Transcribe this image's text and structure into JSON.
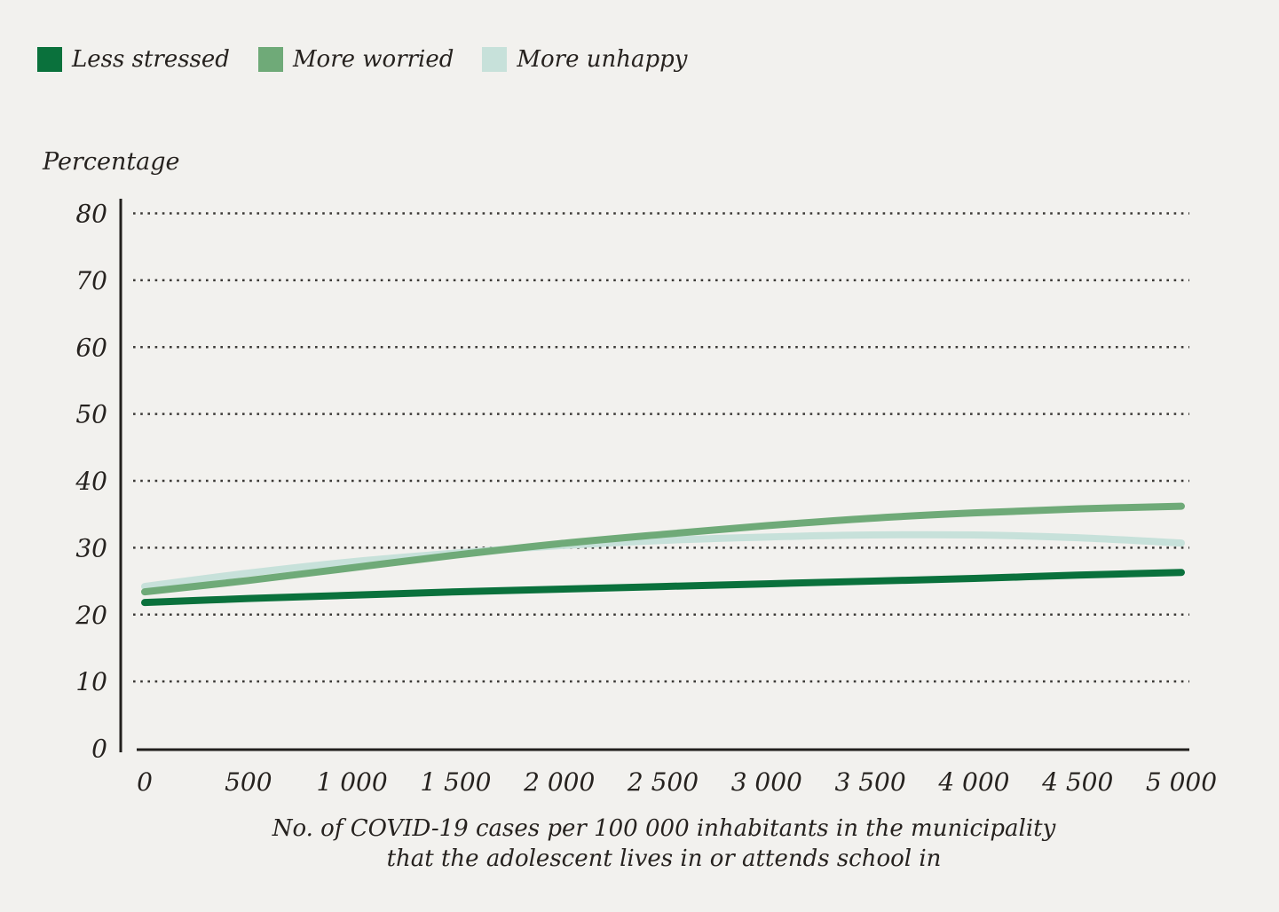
{
  "page": {
    "background": "#f2f1ee",
    "text_color": "#26221f",
    "axis_color": "#22201d",
    "grid_color": "#3c3a37"
  },
  "legend": {
    "items": [
      {
        "label": "Less stressed",
        "color": "#0a713c"
      },
      {
        "label": "More worried",
        "color": "#6faa78"
      },
      {
        "label": "More unhappy",
        "color": "#c7e1da"
      }
    ]
  },
  "chart_data": {
    "type": "line",
    "title": "",
    "ylabel": "Percentage",
    "xlabel_line1": "No. of COVID-19 cases per 100 000 inhabitants in the municipality",
    "xlabel_line2": "that the adolescent lives in or attends school in",
    "xlim": [
      0,
      5000
    ],
    "ylim": [
      0,
      80
    ],
    "yticks": [
      0,
      10,
      20,
      30,
      40,
      50,
      60,
      70,
      80
    ],
    "xticks": [
      0,
      500,
      1000,
      1500,
      2000,
      2500,
      3000,
      3500,
      4000,
      4500,
      5000
    ],
    "xtick_labels": [
      "0",
      "500",
      "1 000",
      "1 500",
      "2 000",
      "2 500",
      "3 000",
      "3 500",
      "4 000",
      "4 500",
      "5 000"
    ],
    "grid": "horizontal-dotted",
    "legend_position": "top-left",
    "x": [
      0,
      500,
      1000,
      1500,
      2000,
      2500,
      3000,
      3500,
      4000,
      4500,
      5000
    ],
    "series": [
      {
        "name": "Less stressed",
        "color": "#0a713c",
        "values": [
          21.8,
          22.4,
          22.9,
          23.4,
          23.8,
          24.2,
          24.6,
          25.0,
          25.4,
          25.9,
          26.3
        ]
      },
      {
        "name": "More worried",
        "color": "#6faa78",
        "values": [
          23.4,
          25.1,
          27.0,
          28.9,
          30.6,
          32.0,
          33.3,
          34.4,
          35.2,
          35.8,
          36.2
        ]
      },
      {
        "name": "More unhappy",
        "color": "#c7e1da",
        "values": [
          24.2,
          26.2,
          27.9,
          29.2,
          30.3,
          31.1,
          31.6,
          31.9,
          31.9,
          31.5,
          30.7
        ]
      }
    ]
  }
}
